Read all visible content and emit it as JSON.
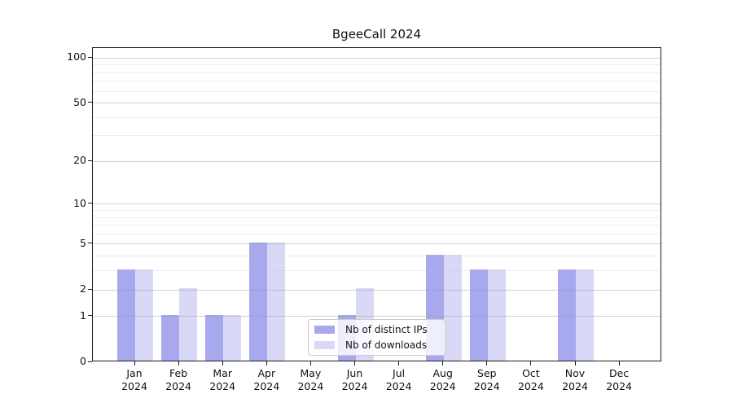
{
  "title": "BgeeCall 2024",
  "chart_data": {
    "type": "bar",
    "title": "BgeeCall 2024",
    "months": [
      "Jan",
      "Feb",
      "Mar",
      "Apr",
      "May",
      "Jun",
      "Jul",
      "Aug",
      "Sep",
      "Oct",
      "Nov",
      "Dec"
    ],
    "year": "2024",
    "series": [
      {
        "name": "Nb of distinct IPs",
        "color": "#a8a8ee",
        "values": [
          3,
          1,
          1,
          5,
          0,
          1,
          0,
          4,
          3,
          0,
          3,
          0
        ]
      },
      {
        "name": "Nb of downloads",
        "color": "#d9d9f7",
        "values": [
          3,
          2,
          1,
          5,
          0,
          2,
          0,
          4,
          3,
          0,
          3,
          0
        ]
      }
    ],
    "yticks": [
      0,
      1,
      2,
      5,
      10,
      20,
      50,
      100
    ],
    "minor_gridlines": [
      3,
      4,
      6,
      7,
      8,
      9,
      30,
      40,
      60,
      70,
      80,
      90
    ],
    "scale": "log1p",
    "ylim": [
      0,
      116
    ],
    "grid": "on",
    "legend_position": "inside-bottom-center",
    "xlabel": "",
    "ylabel": ""
  }
}
